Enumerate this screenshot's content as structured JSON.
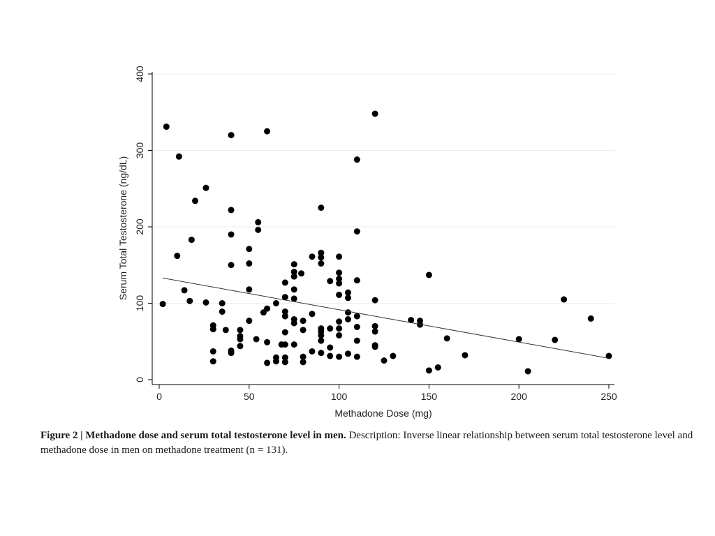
{
  "chart_data": {
    "type": "scatter",
    "xlabel": "Methadone Dose (mg)",
    "ylabel": "Serum Total Testosterone (ng/dL)",
    "xlim": [
      0,
      250
    ],
    "ylim": [
      0,
      400
    ],
    "xticks": [
      "0",
      "50",
      "100",
      "150",
      "200",
      "250"
    ],
    "yticks": [
      "0",
      "100",
      "200",
      "300",
      "400"
    ],
    "grid": "horizontal",
    "marker_color": "#000000",
    "trend_line": {
      "x": [
        2,
        250
      ],
      "y": [
        133,
        28
      ]
    },
    "points": [
      [
        2,
        99
      ],
      [
        4,
        331
      ],
      [
        10,
        162
      ],
      [
        11,
        292
      ],
      [
        14,
        117
      ],
      [
        17,
        103
      ],
      [
        18,
        183
      ],
      [
        20,
        234
      ],
      [
        26,
        251
      ],
      [
        26,
        101
      ],
      [
        30,
        71
      ],
      [
        30,
        66
      ],
      [
        30,
        37
      ],
      [
        30,
        24
      ],
      [
        35,
        100
      ],
      [
        35,
        89
      ],
      [
        37,
        65
      ],
      [
        40,
        320
      ],
      [
        40,
        222
      ],
      [
        40,
        190
      ],
      [
        40,
        150
      ],
      [
        40,
        38
      ],
      [
        40,
        35
      ],
      [
        45,
        65
      ],
      [
        45,
        57
      ],
      [
        45,
        53
      ],
      [
        45,
        44
      ],
      [
        50,
        171
      ],
      [
        50,
        152
      ],
      [
        50,
        118
      ],
      [
        50,
        77
      ],
      [
        54,
        53
      ],
      [
        55,
        206
      ],
      [
        55,
        196
      ],
      [
        58,
        88
      ],
      [
        60,
        325
      ],
      [
        60,
        93
      ],
      [
        60,
        49
      ],
      [
        60,
        22
      ],
      [
        65,
        100
      ],
      [
        65,
        29
      ],
      [
        65,
        24
      ],
      [
        68,
        46
      ],
      [
        70,
        127
      ],
      [
        70,
        108
      ],
      [
        70,
        89
      ],
      [
        70,
        83
      ],
      [
        70,
        62
      ],
      [
        70,
        46
      ],
      [
        70,
        29
      ],
      [
        70,
        23
      ],
      [
        75,
        151
      ],
      [
        75,
        141
      ],
      [
        75,
        135
      ],
      [
        75,
        118
      ],
      [
        75,
        106
      ],
      [
        75,
        79
      ],
      [
        75,
        74
      ],
      [
        75,
        46
      ],
      [
        79,
        139
      ],
      [
        80,
        77
      ],
      [
        80,
        65
      ],
      [
        80,
        30
      ],
      [
        80,
        23
      ],
      [
        85,
        161
      ],
      [
        85,
        86
      ],
      [
        85,
        37
      ],
      [
        90,
        225
      ],
      [
        90,
        166
      ],
      [
        90,
        160
      ],
      [
        90,
        152
      ],
      [
        90,
        67
      ],
      [
        90,
        63
      ],
      [
        90,
        58
      ],
      [
        90,
        51
      ],
      [
        90,
        35
      ],
      [
        95,
        129
      ],
      [
        95,
        67
      ],
      [
        95,
        42
      ],
      [
        95,
        31
      ],
      [
        100,
        161
      ],
      [
        100,
        140
      ],
      [
        100,
        132
      ],
      [
        100,
        126
      ],
      [
        100,
        111
      ],
      [
        100,
        76
      ],
      [
        100,
        67
      ],
      [
        100,
        58
      ],
      [
        100,
        30
      ],
      [
        105,
        114
      ],
      [
        105,
        107
      ],
      [
        105,
        88
      ],
      [
        105,
        79
      ],
      [
        105,
        34
      ],
      [
        110,
        288
      ],
      [
        110,
        194
      ],
      [
        110,
        130
      ],
      [
        110,
        83
      ],
      [
        110,
        69
      ],
      [
        110,
        51
      ],
      [
        110,
        30
      ],
      [
        120,
        348
      ],
      [
        120,
        104
      ],
      [
        120,
        70
      ],
      [
        120,
        63
      ],
      [
        120,
        45
      ],
      [
        120,
        43
      ],
      [
        125,
        25
      ],
      [
        130,
        31
      ],
      [
        140,
        78
      ],
      [
        145,
        77
      ],
      [
        145,
        72
      ],
      [
        150,
        137
      ],
      [
        150,
        12
      ],
      [
        155,
        16
      ],
      [
        160,
        54
      ],
      [
        170,
        32
      ],
      [
        200,
        53
      ],
      [
        205,
        11
      ],
      [
        220,
        52
      ],
      [
        225,
        105
      ],
      [
        240,
        80
      ],
      [
        250,
        31
      ]
    ]
  },
  "caption": {
    "label": "Figure 2 | Methadone dose and serum total testosterone level in men.",
    "text": " Description: Inverse linear relationship between serum total testosterone level and methadone dose in men on methadone treatment (n = 131)."
  }
}
